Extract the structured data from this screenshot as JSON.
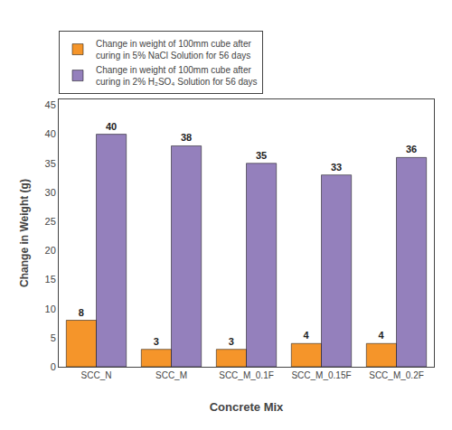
{
  "chart_data": {
    "type": "bar",
    "categories": [
      "SCC_N",
      "SCC_M",
      "SCC_M_0.1F",
      "SCC_M_0.15F",
      "SCC_M_0.2F"
    ],
    "series": [
      {
        "name": "Change in weight of 100mm cube after\ncuring in 5% NaCl Solution for 56 days",
        "color": "#F5952A",
        "values": [
          8,
          3,
          3,
          4,
          4
        ]
      },
      {
        "name": "Change in weight of 100mm cube after\ncuring in 2% H₂SO₄ Solution for 56 days",
        "color": "#9480BC",
        "values": [
          40,
          38,
          35,
          33,
          36
        ]
      }
    ],
    "xlabel": "Concrete Mix",
    "ylabel": "Change in Weight (g)",
    "ylim": [
      0,
      46
    ],
    "yticks": [
      0,
      5,
      10,
      15,
      20,
      25,
      30,
      35,
      40,
      45
    ],
    "grid": false,
    "legend": "upper left",
    "data_labels": true
  }
}
